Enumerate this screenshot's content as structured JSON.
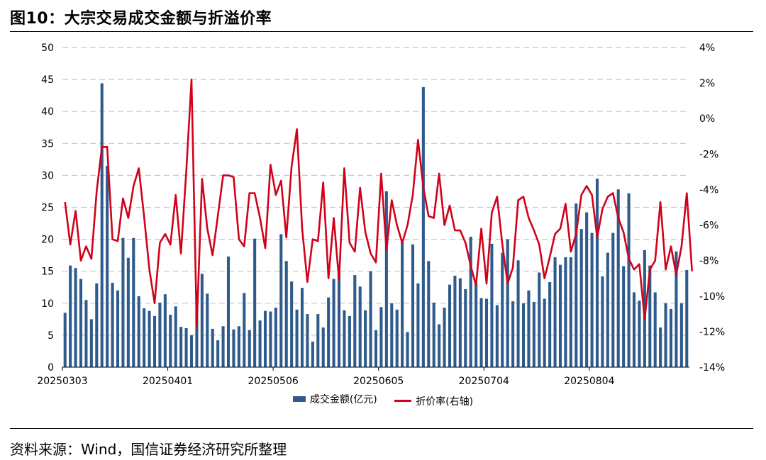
{
  "header": {
    "title": "图10：大宗交易成交金额与折溢价率"
  },
  "footer": {
    "source": "资料来源：Wind，国信证券经济研究所整理"
  },
  "colors": {
    "bar": "#2e5b8c",
    "line": "#d0021b",
    "grid": "#c8c8c8"
  },
  "chart_data": {
    "type": "bar+line",
    "title": "",
    "legend_position": "bottom",
    "x_tick_labels": [
      "20250303",
      "20250401",
      "20250506",
      "20250605",
      "20250704",
      "20250804"
    ],
    "x_tick_indices": [
      0,
      20,
      40,
      60,
      80,
      100
    ],
    "y_left": {
      "range": [
        0,
        50
      ],
      "ticks": [
        "0",
        "5",
        "10",
        "15",
        "20",
        "25",
        "30",
        "35",
        "40",
        "45",
        "50"
      ]
    },
    "y_right": {
      "range": [
        -14,
        4
      ],
      "ticks": [
        "-14%",
        "-12%",
        "-10%",
        "-8%",
        "-6%",
        "-4%",
        "-2%",
        "0%",
        "2%",
        "4%"
      ]
    },
    "grid": true,
    "series": [
      {
        "name": "成交金额(亿元)",
        "kind": "bar",
        "axis": "left",
        "values": [
          8.5,
          15.9,
          15.5,
          13.8,
          10.5,
          7.5,
          13.1,
          44.4,
          31.5,
          13.2,
          12.0,
          20.2,
          17.1,
          20.2,
          11.1,
          9.2,
          8.8,
          8.0,
          10.1,
          11.4,
          8.2,
          9.5,
          6.3,
          6.1,
          5.0,
          11.9,
          14.6,
          11.5,
          6.0,
          4.2,
          6.4,
          17.3,
          5.9,
          6.4,
          11.6,
          5.8,
          20.1,
          7.3,
          8.8,
          8.7,
          9.3,
          20.8,
          16.6,
          13.4,
          9.0,
          12.4,
          8.3,
          4.0,
          8.3,
          6.2,
          10.9,
          13.8,
          16.0,
          8.9,
          8.0,
          14.4,
          12.6,
          8.9,
          15.0,
          5.8,
          9.4,
          27.5,
          10.0,
          9.0,
          19.6,
          5.5,
          19.2,
          13.1,
          43.8,
          16.6,
          10.1,
          6.7,
          9.3,
          12.9,
          14.3,
          13.9,
          12.2,
          20.4,
          13.1,
          10.8,
          10.7,
          19.3,
          9.7,
          17.9,
          20.0,
          10.3,
          16.7,
          10.0,
          12.0,
          10.2,
          14.8,
          10.7,
          13.3,
          17.2,
          16.0,
          17.2,
          17.2,
          25.6,
          21.6,
          24.2,
          21.0,
          29.5,
          14.2,
          17.9,
          21.0,
          27.8,
          15.8,
          27.2,
          11.7,
          10.4,
          18.3,
          15.9,
          11.7,
          6.2,
          10.0,
          9.1,
          18.1,
          10.0,
          15.2
        ],
        "color": "#2e5b8c"
      },
      {
        "name": "折价率(右轴)",
        "kind": "line",
        "axis": "right",
        "values": [
          -4.7,
          -7.1,
          -5.2,
          -8.0,
          -7.2,
          -7.9,
          -4.1,
          -1.6,
          -1.6,
          -6.8,
          -6.9,
          -4.5,
          -5.6,
          -3.8,
          -2.8,
          -5.5,
          -8.5,
          -10.4,
          -7.0,
          -6.5,
          -7.1,
          -4.3,
          -7.6,
          -3.0,
          2.2,
          -11.7,
          -3.4,
          -6.2,
          -7.7,
          -5.5,
          -3.2,
          -3.2,
          -3.3,
          -6.8,
          -7.2,
          -4.2,
          -4.2,
          -5.6,
          -7.3,
          -2.6,
          -4.3,
          -3.5,
          -6.7,
          -2.7,
          -0.6,
          -6.2,
          -9.2,
          -6.8,
          -6.9,
          -3.6,
          -9.0,
          -5.6,
          -9.1,
          -2.8,
          -7.0,
          -7.5,
          -3.9,
          -6.4,
          -7.6,
          -8.1,
          -3.1,
          -7.4,
          -4.6,
          -6.0,
          -7.0,
          -6.0,
          -4.3,
          -1.2,
          -3.9,
          -5.5,
          -5.6,
          -3.1,
          -6.0,
          -4.9,
          -6.3,
          -6.3,
          -7.0,
          -8.3,
          -9.4,
          -6.2,
          -9.3,
          -5.3,
          -4.4,
          -7.1,
          -9.3,
          -8.4,
          -4.6,
          -4.4,
          -5.6,
          -6.3,
          -7.1,
          -9.0,
          -7.8,
          -6.5,
          -6.2,
          -4.8,
          -7.5,
          -6.5,
          -4.3,
          -3.8,
          -4.3,
          -6.7,
          -5.1,
          -4.4,
          -4.2,
          -5.6,
          -6.4,
          -7.9,
          -8.5,
          -8.2,
          -11.3,
          -8.5,
          -8.0,
          -4.7,
          -8.5,
          -7.2,
          -8.8,
          -7.2,
          -4.2,
          -8.6
        ],
        "color": "#d0021b"
      }
    ]
  }
}
